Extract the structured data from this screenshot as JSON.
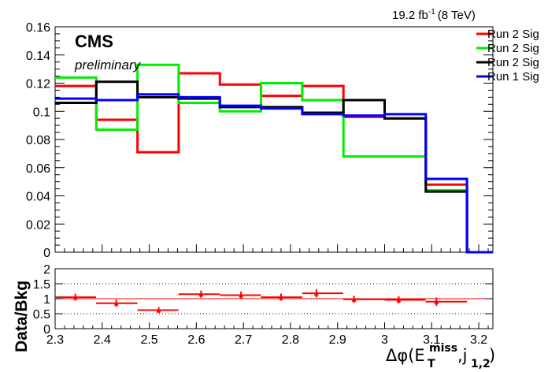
{
  "header": {
    "lumi_value": "19.2 fb",
    "lumi_exp": "-1",
    "lumi_energy": "(8 TeV)",
    "cms": "CMS",
    "preliminary": "preliminary"
  },
  "legend": [
    {
      "label": "Run 2 Sig",
      "color": "#ff0000"
    },
    {
      "label": "Run 2 Sig",
      "color": "#00ee00"
    },
    {
      "label": "Run 2 Sig",
      "color": "#000000"
    },
    {
      "label": "Run 1 Sig",
      "color": "#0000ff"
    }
  ],
  "chart_data": [
    {
      "type": "line",
      "xlim": [
        2.3,
        3.23
      ],
      "ylim": [
        0,
        0.16
      ],
      "yticks": [
        "0",
        "0.02",
        "0.04",
        "0.06",
        "0.08",
        "0.1",
        "0.12",
        "0.14",
        "0.16"
      ],
      "ytick_values": [
        0,
        0.02,
        0.04,
        0.06,
        0.08,
        0.1,
        0.12,
        0.14,
        0.16
      ],
      "bin_edges": [
        2.3,
        2.3875,
        2.475,
        2.5625,
        2.65,
        2.7375,
        2.825,
        2.9125,
        3.0,
        3.0875,
        3.175,
        3.23
      ],
      "series": [
        {
          "color": "#ff0000",
          "values": [
            0.118,
            0.094,
            0.071,
            0.127,
            0.119,
            0.111,
            0.118,
            0.096,
            0.095,
            0.048,
            0.0,
            0.0
          ]
        },
        {
          "color": "#00ee00",
          "values": [
            0.124,
            0.087,
            0.133,
            0.106,
            0.1,
            0.12,
            0.108,
            0.068,
            0.068,
            0.044,
            0.0,
            0.0
          ]
        },
        {
          "color": "#000000",
          "values": [
            0.106,
            0.121,
            0.11,
            0.109,
            0.103,
            0.103,
            0.099,
            0.108,
            0.095,
            0.043,
            0.0,
            0.0
          ]
        },
        {
          "color": "#0000ff",
          "values": [
            0.109,
            0.108,
            0.112,
            0.11,
            0.104,
            0.102,
            0.098,
            0.097,
            0.098,
            0.052,
            0.0,
            0.0
          ]
        }
      ]
    },
    {
      "type": "scatter",
      "ylabel": "Data/Bkg",
      "xlim": [
        2.3,
        3.23
      ],
      "ylim": [
        0,
        2
      ],
      "yticks": [
        "0",
        "0.5",
        "1",
        "1.5",
        "2"
      ],
      "ytick_values": [
        0,
        0.5,
        1,
        1.5,
        2
      ],
      "xticks": [
        "2.3",
        "2.4",
        "2.5",
        "2.6",
        "2.7",
        "2.8",
        "2.9",
        "3",
        "3.1",
        "3.2"
      ],
      "xtick_values": [
        2.3,
        2.4,
        2.5,
        2.6,
        2.7,
        2.8,
        2.9,
        3.0,
        3.1,
        3.2
      ],
      "reference_lines": [
        0.5,
        1.0,
        1.5
      ],
      "points": [
        {
          "x": 2.343,
          "x_lo": 2.3,
          "x_hi": 2.387,
          "y": 1.05,
          "err": 0.12
        },
        {
          "x": 2.43,
          "x_lo": 2.387,
          "x_hi": 2.475,
          "y": 0.85,
          "err": 0.12
        },
        {
          "x": 2.52,
          "x_lo": 2.475,
          "x_hi": 2.562,
          "y": 0.62,
          "err": 0.1
        },
        {
          "x": 2.61,
          "x_lo": 2.562,
          "x_hi": 2.65,
          "y": 1.15,
          "err": 0.12
        },
        {
          "x": 2.695,
          "x_lo": 2.65,
          "x_hi": 2.737,
          "y": 1.12,
          "err": 0.12
        },
        {
          "x": 2.78,
          "x_lo": 2.737,
          "x_hi": 2.825,
          "y": 1.05,
          "err": 0.12
        },
        {
          "x": 2.855,
          "x_lo": 2.825,
          "x_hi": 2.912,
          "y": 1.18,
          "err": 0.14
        },
        {
          "x": 2.935,
          "x_lo": 2.912,
          "x_hi": 3.0,
          "y": 0.98,
          "err": 0.12
        },
        {
          "x": 3.03,
          "x_lo": 3.0,
          "x_hi": 3.087,
          "y": 0.96,
          "err": 0.12
        },
        {
          "x": 3.11,
          "x_lo": 3.087,
          "x_hi": 3.175,
          "y": 0.9,
          "err": 0.14
        }
      ]
    }
  ],
  "xaxis": {
    "delta": "Δφ(E",
    "miss": "miss",
    "T": "T",
    "jets": ",j",
    "jets_sub": "1,2",
    "close": ")"
  }
}
